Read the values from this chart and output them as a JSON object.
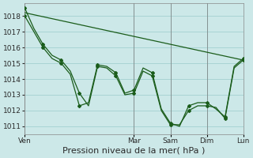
{
  "background_color": "#cce8e8",
  "grid_color": "#a8d4d4",
  "line_color": "#1a5c1a",
  "ylim": [
    1010.5,
    1018.8
  ],
  "yticks": [
    1011,
    1012,
    1013,
    1014,
    1015,
    1016,
    1017,
    1018
  ],
  "xlabel": "Pression niveau de la mer( hPa )",
  "xlabel_fontsize": 8,
  "tick_fontsize": 6.5,
  "xlim": [
    0,
    144
  ],
  "day_labels": [
    "Ven",
    "Mar",
    "Sam",
    "Dim",
    "Lun"
  ],
  "day_positions": [
    0,
    72,
    96,
    120,
    144
  ],
  "vline_positions": [
    0,
    72,
    96,
    120,
    144
  ],
  "line1_x": [
    0,
    144
  ],
  "line1_y": [
    1018.2,
    1015.2
  ],
  "line2_x": [
    0,
    6,
    12,
    18,
    24,
    30,
    36,
    42,
    48,
    54,
    60,
    66,
    72,
    78,
    84,
    90,
    96,
    102,
    108,
    114,
    120,
    126,
    132,
    138,
    144
  ],
  "line2_y": [
    1018.5,
    1017.2,
    1016.2,
    1015.5,
    1015.2,
    1014.5,
    1013.1,
    1012.3,
    1014.8,
    1014.7,
    1014.2,
    1013.0,
    1013.1,
    1014.5,
    1014.2,
    1012.0,
    1011.1,
    1011.1,
    1012.0,
    1012.3,
    1012.3,
    1012.2,
    1011.5,
    1014.7,
    1015.2
  ],
  "line3_x": [
    0,
    6,
    12,
    18,
    24,
    30,
    36,
    42,
    48,
    54,
    60,
    66,
    72,
    78,
    84,
    90,
    96,
    102,
    108,
    114,
    120,
    126,
    132,
    138,
    144
  ],
  "line3_y": [
    1018.0,
    1017.0,
    1016.0,
    1015.3,
    1015.0,
    1014.3,
    1012.3,
    1012.5,
    1014.9,
    1014.8,
    1014.4,
    1013.1,
    1013.3,
    1014.7,
    1014.4,
    1012.1,
    1011.2,
    1011.0,
    1012.3,
    1012.5,
    1012.5,
    1012.1,
    1011.6,
    1014.8,
    1015.3
  ]
}
